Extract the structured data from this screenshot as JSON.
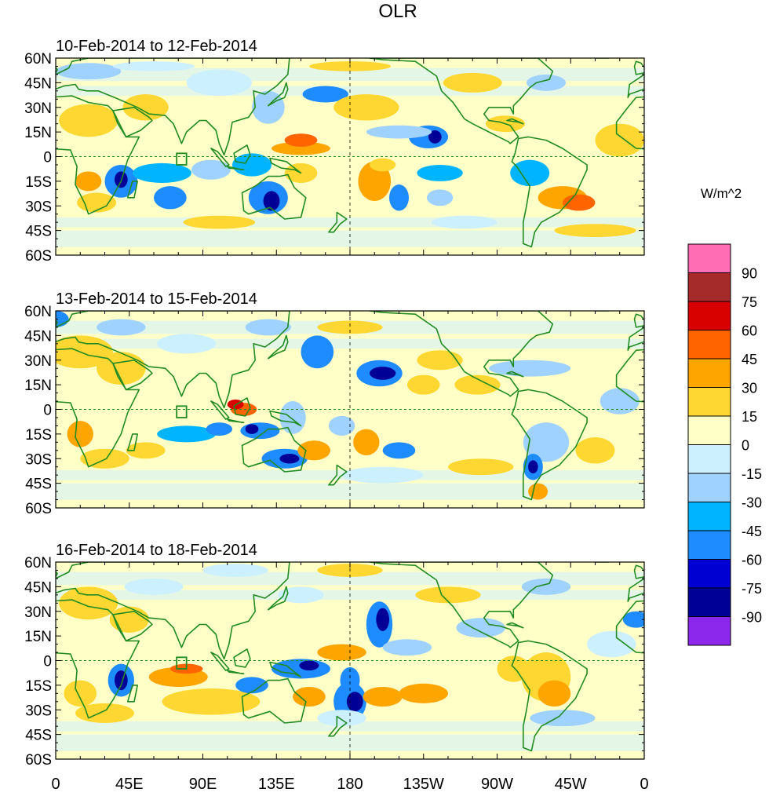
{
  "title": "OLR",
  "units": "W/m^2",
  "panels": [
    {
      "label": "10-Feb-2014 to 12-Feb-2014"
    },
    {
      "label": "13-Feb-2014 to 15-Feb-2014"
    },
    {
      "label": "16-Feb-2014 to 18-Feb-2014"
    }
  ],
  "lat_labels": [
    "60N",
    "45N",
    "30N",
    "15N",
    "0",
    "15S",
    "30S",
    "45S",
    "60S"
  ],
  "lon_labels": [
    "0",
    "45E",
    "90E",
    "135E",
    "180",
    "135W",
    "90W",
    "45W",
    "0"
  ],
  "colorbar": {
    "labels": [
      "90",
      "75",
      "60",
      "45",
      "30",
      "15",
      "0",
      "-15",
      "-30",
      "-45",
      "-60",
      "-75",
      "-90"
    ],
    "colors": [
      "#ff6eb4",
      "#a52a2a",
      "#d90000",
      "#ff6400",
      "#ffa500",
      "#ffd733",
      "#ffffc8",
      "#cdf0ff",
      "#a0d2ff",
      "#00b4ff",
      "#1e8cff",
      "#0000d2",
      "#000096",
      "#8c28eb"
    ]
  },
  "map_colors": {
    "coast": "#228b22",
    "ref_line": "#228b22",
    "center_line": "#000000"
  }
}
